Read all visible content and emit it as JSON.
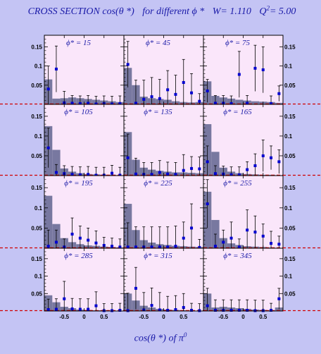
{
  "title": {
    "main": "CROSS SECTION  cos(θ *)",
    "middle": "for different  ϕ *",
    "w": "W= 1.110",
    "q2_label": "Q",
    "q2_sup": "2",
    "q2_value": "= 5.00"
  },
  "xaxis_label": "cos(θ *)  of  π",
  "xaxis_sup": "0",
  "colors": {
    "background": "#c4c4f4",
    "panel": "#fae6fa",
    "hist": "#7878a0",
    "marker": "#0000d0",
    "text": "#1a1aa8",
    "zero_line": "#d00000"
  },
  "chart_data": {
    "type": "bar",
    "grid": {
      "rows": 4,
      "cols": 3
    },
    "ylim": [
      0,
      0.18
    ],
    "yticks": [
      "0.15",
      "0.1",
      "0.05"
    ],
    "ytick_values": [
      0.15,
      0.1,
      0.05
    ],
    "xlim": [
      -1,
      1
    ],
    "xticks": [
      "-0.5",
      "0",
      "0.5"
    ],
    "xtick_values": [
      -0.5,
      0,
      0.5
    ],
    "bins": 10,
    "panels": [
      {
        "label": "ϕ* = 15",
        "hist": [
          0.065,
          0.015,
          0.016,
          0.018,
          0.016,
          0.014,
          0.012,
          0.01,
          0.008,
          0.006
        ],
        "points": [
          [
            -0.9,
            0.04,
            0.06
          ],
          [
            -0.7,
            0.092,
            0.06
          ],
          [
            -0.5,
            0.004,
            0.03
          ],
          [
            -0.3,
            0.003,
            0.02
          ],
          [
            -0.1,
            0.002,
            0.02
          ],
          [
            0.1,
            0.003,
            0.02
          ],
          [
            0.3,
            0.001,
            0.02
          ],
          [
            0.5,
            0.002,
            0.02
          ],
          [
            0.7,
            0.001,
            0.02
          ],
          [
            0.9,
            0.002,
            0.02
          ]
        ]
      },
      {
        "label": "ϕ* = 45",
        "hist": [
          0.095,
          0.05,
          0.02,
          0.016,
          0.014,
          0.012,
          0.008,
          0.006,
          0.005,
          0.006
        ],
        "points": [
          [
            -0.9,
            0.104,
            0.06
          ],
          [
            -0.7,
            0.003,
            0.06
          ],
          [
            -0.5,
            0.013,
            0.05
          ],
          [
            -0.3,
            0.02,
            0.05
          ],
          [
            -0.1,
            0.015,
            0.05
          ],
          [
            0.1,
            0.038,
            0.05
          ],
          [
            0.3,
            0.026,
            0.05
          ],
          [
            0.5,
            0.057,
            0.06
          ],
          [
            0.7,
            0.03,
            0.05
          ],
          [
            0.9,
            0.008,
            0.02
          ]
        ]
      },
      {
        "label": "ϕ* = 75",
        "hist": [
          0.06,
          0.022,
          0.018,
          0.015,
          0.012,
          0.01,
          0.008,
          0.007,
          0.006,
          0.004
        ],
        "points": [
          [
            -0.9,
            0.035,
            0.03
          ],
          [
            -0.7,
            0.003,
            0.02
          ],
          [
            -0.5,
            0.003,
            0.02
          ],
          [
            -0.3,
            0.002,
            0.02
          ],
          [
            -0.1,
            0.078,
            0.06
          ],
          [
            0.1,
            0.003,
            0.02
          ],
          [
            0.3,
            0.094,
            0.06
          ],
          [
            0.5,
            0.09,
            0.06
          ],
          [
            0.7,
            0.002,
            0.02
          ],
          [
            0.9,
            0.028,
            0.02
          ]
        ]
      },
      {
        "label": "ϕ* = 105",
        "hist": [
          0.125,
          0.065,
          0.018,
          0.01,
          0.006,
          0.004,
          0.003,
          0.002,
          0.002,
          0.001
        ],
        "points": [
          [
            -0.9,
            0.07,
            0.05
          ],
          [
            -0.7,
            0.008,
            0.02
          ],
          [
            -0.5,
            0.005,
            0.02
          ],
          [
            -0.3,
            0.003,
            0.02
          ],
          [
            -0.1,
            0.002,
            0.02
          ],
          [
            0.1,
            0.003,
            0.02
          ],
          [
            0.3,
            0.001,
            0.02
          ],
          [
            0.5,
            0.001,
            0.02
          ],
          [
            0.7,
            0.006,
            0.02
          ],
          [
            0.9,
            0.001,
            0.02
          ]
        ]
      },
      {
        "label": "ϕ* = 135",
        "hist": [
          0.11,
          0.04,
          0.02,
          0.015,
          0.012,
          0.01,
          0.008,
          0.008,
          0.007,
          0.006
        ],
        "points": [
          [
            -0.9,
            0.045,
            0.06
          ],
          [
            -0.7,
            0.004,
            0.04
          ],
          [
            -0.5,
            0.003,
            0.03
          ],
          [
            -0.3,
            0.003,
            0.03
          ],
          [
            -0.1,
            0.008,
            0.03
          ],
          [
            0.1,
            0.004,
            0.03
          ],
          [
            0.3,
            0.003,
            0.03
          ],
          [
            0.5,
            0.013,
            0.04
          ],
          [
            0.7,
            0.018,
            0.03
          ],
          [
            0.9,
            0.017,
            0.03
          ]
        ]
      },
      {
        "label": "ϕ* = 165",
        "hist": [
          0.13,
          0.06,
          0.02,
          0.01,
          0.006,
          0.004,
          0.003,
          0.002,
          0.002,
          0.001
        ],
        "points": [
          [
            -0.9,
            0.035,
            0.04
          ],
          [
            -0.7,
            0.005,
            0.02
          ],
          [
            -0.5,
            0.004,
            0.02
          ],
          [
            -0.3,
            0.002,
            0.02
          ],
          [
            -0.1,
            0.002,
            0.02
          ],
          [
            0.1,
            0.015,
            0.02
          ],
          [
            0.3,
            0.025,
            0.03
          ],
          [
            0.5,
            0.05,
            0.04
          ],
          [
            0.7,
            0.045,
            0.03
          ],
          [
            0.9,
            0.035,
            0.03
          ]
        ]
      },
      {
        "label": "ϕ* = 195",
        "hist": [
          0.13,
          0.06,
          0.025,
          0.015,
          0.01,
          0.007,
          0.006,
          0.004,
          0.003,
          0.002
        ],
        "points": [
          [
            -0.9,
            0.005,
            0.04
          ],
          [
            -0.7,
            0.015,
            0.03
          ],
          [
            -0.5,
            0.003,
            0.02
          ],
          [
            -0.3,
            0.035,
            0.04
          ],
          [
            -0.1,
            0.025,
            0.03
          ],
          [
            0.1,
            0.02,
            0.03
          ],
          [
            0.3,
            0.013,
            0.03
          ],
          [
            0.5,
            0.007,
            0.02
          ],
          [
            0.7,
            0.005,
            0.02
          ],
          [
            0.9,
            0.003,
            0.02
          ]
        ]
      },
      {
        "label": "ϕ* = 225",
        "hist": [
          0.11,
          0.045,
          0.02,
          0.014,
          0.01,
          0.008,
          0.006,
          0.005,
          0.004,
          0.003
        ],
        "points": [
          [
            -0.9,
            0.003,
            0.06
          ],
          [
            -0.7,
            0.003,
            0.05
          ],
          [
            -0.5,
            0.003,
            0.05
          ],
          [
            -0.3,
            0.003,
            0.05
          ],
          [
            -0.1,
            0.003,
            0.05
          ],
          [
            0.1,
            0.003,
            0.05
          ],
          [
            0.3,
            0.005,
            0.05
          ],
          [
            0.5,
            0.025,
            0.04
          ],
          [
            0.7,
            0.05,
            0.06
          ],
          [
            0.9,
            0.002,
            0.02
          ]
        ]
      },
      {
        "label": "ϕ* = 255",
        "hist": [
          0.14,
          0.07,
          0.025,
          0.012,
          0.008,
          0.005,
          0.004,
          0.003,
          0.002,
          0.001
        ],
        "points": [
          [
            -0.9,
            0.11,
            0.06
          ],
          [
            -0.7,
            0.005,
            0.03
          ],
          [
            -0.5,
            0.015,
            0.03
          ],
          [
            -0.3,
            0.025,
            0.04
          ],
          [
            -0.1,
            0.003,
            0.02
          ],
          [
            0.1,
            0.045,
            0.05
          ],
          [
            0.3,
            0.04,
            0.04
          ],
          [
            0.5,
            0.03,
            0.03
          ],
          [
            0.7,
            0.012,
            0.03
          ],
          [
            0.9,
            0.01,
            0.02
          ]
        ]
      },
      {
        "label": "ϕ* = 285",
        "hist": [
          0.045,
          0.025,
          0.012,
          0.008,
          0.004,
          0.003,
          0.002,
          0.002,
          0.001,
          0.001
        ],
        "points": [
          [
            -0.9,
            0.004,
            0.03
          ],
          [
            -0.7,
            0.005,
            0.03
          ],
          [
            -0.5,
            0.035,
            0.05
          ],
          [
            -0.3,
            0.006,
            0.03
          ],
          [
            -0.1,
            0.005,
            0.03
          ],
          [
            0.1,
            0.005,
            0.03
          ],
          [
            0.3,
            0.015,
            0.04
          ],
          [
            0.5,
            0.001,
            0.02
          ],
          [
            0.7,
            0.001,
            0.02
          ],
          [
            0.9,
            0.002,
            0.02
          ]
        ]
      },
      {
        "label": "ϕ* = 315",
        "hist": [
          0.05,
          0.03,
          0.015,
          0.01,
          0.006,
          0.004,
          0.003,
          0.002,
          0.001,
          0.001
        ],
        "points": [
          [
            -0.9,
            0.001,
            0.05
          ],
          [
            -0.7,
            0.065,
            0.06
          ],
          [
            -0.5,
            0.003,
            0.05
          ],
          [
            -0.3,
            0.016,
            0.05
          ],
          [
            -0.1,
            0.003,
            0.05
          ],
          [
            0.1,
            0.002,
            0.04
          ],
          [
            0.3,
            0.004,
            0.04
          ],
          [
            0.5,
            0.01,
            0.04
          ],
          [
            0.7,
            0.002,
            0.02
          ],
          [
            0.9,
            0.001,
            0.02
          ]
        ]
      },
      {
        "label": "ϕ* = 345",
        "hist": [
          0.05,
          0.01,
          0.012,
          0.01,
          0.008,
          0.006,
          0.004,
          0.003,
          0.002,
          0.01
        ],
        "points": [
          [
            -0.9,
            0.015,
            0.05
          ],
          [
            -0.7,
            0.002,
            0.03
          ],
          [
            -0.5,
            0.002,
            0.03
          ],
          [
            -0.3,
            0.002,
            0.03
          ],
          [
            -0.1,
            0.002,
            0.03
          ],
          [
            0.1,
            0.002,
            0.03
          ],
          [
            0.3,
            0.001,
            0.03
          ],
          [
            0.5,
            0.001,
            0.03
          ],
          [
            0.7,
            0.002,
            0.02
          ],
          [
            0.9,
            0.035,
            0.03
          ]
        ]
      }
    ]
  }
}
